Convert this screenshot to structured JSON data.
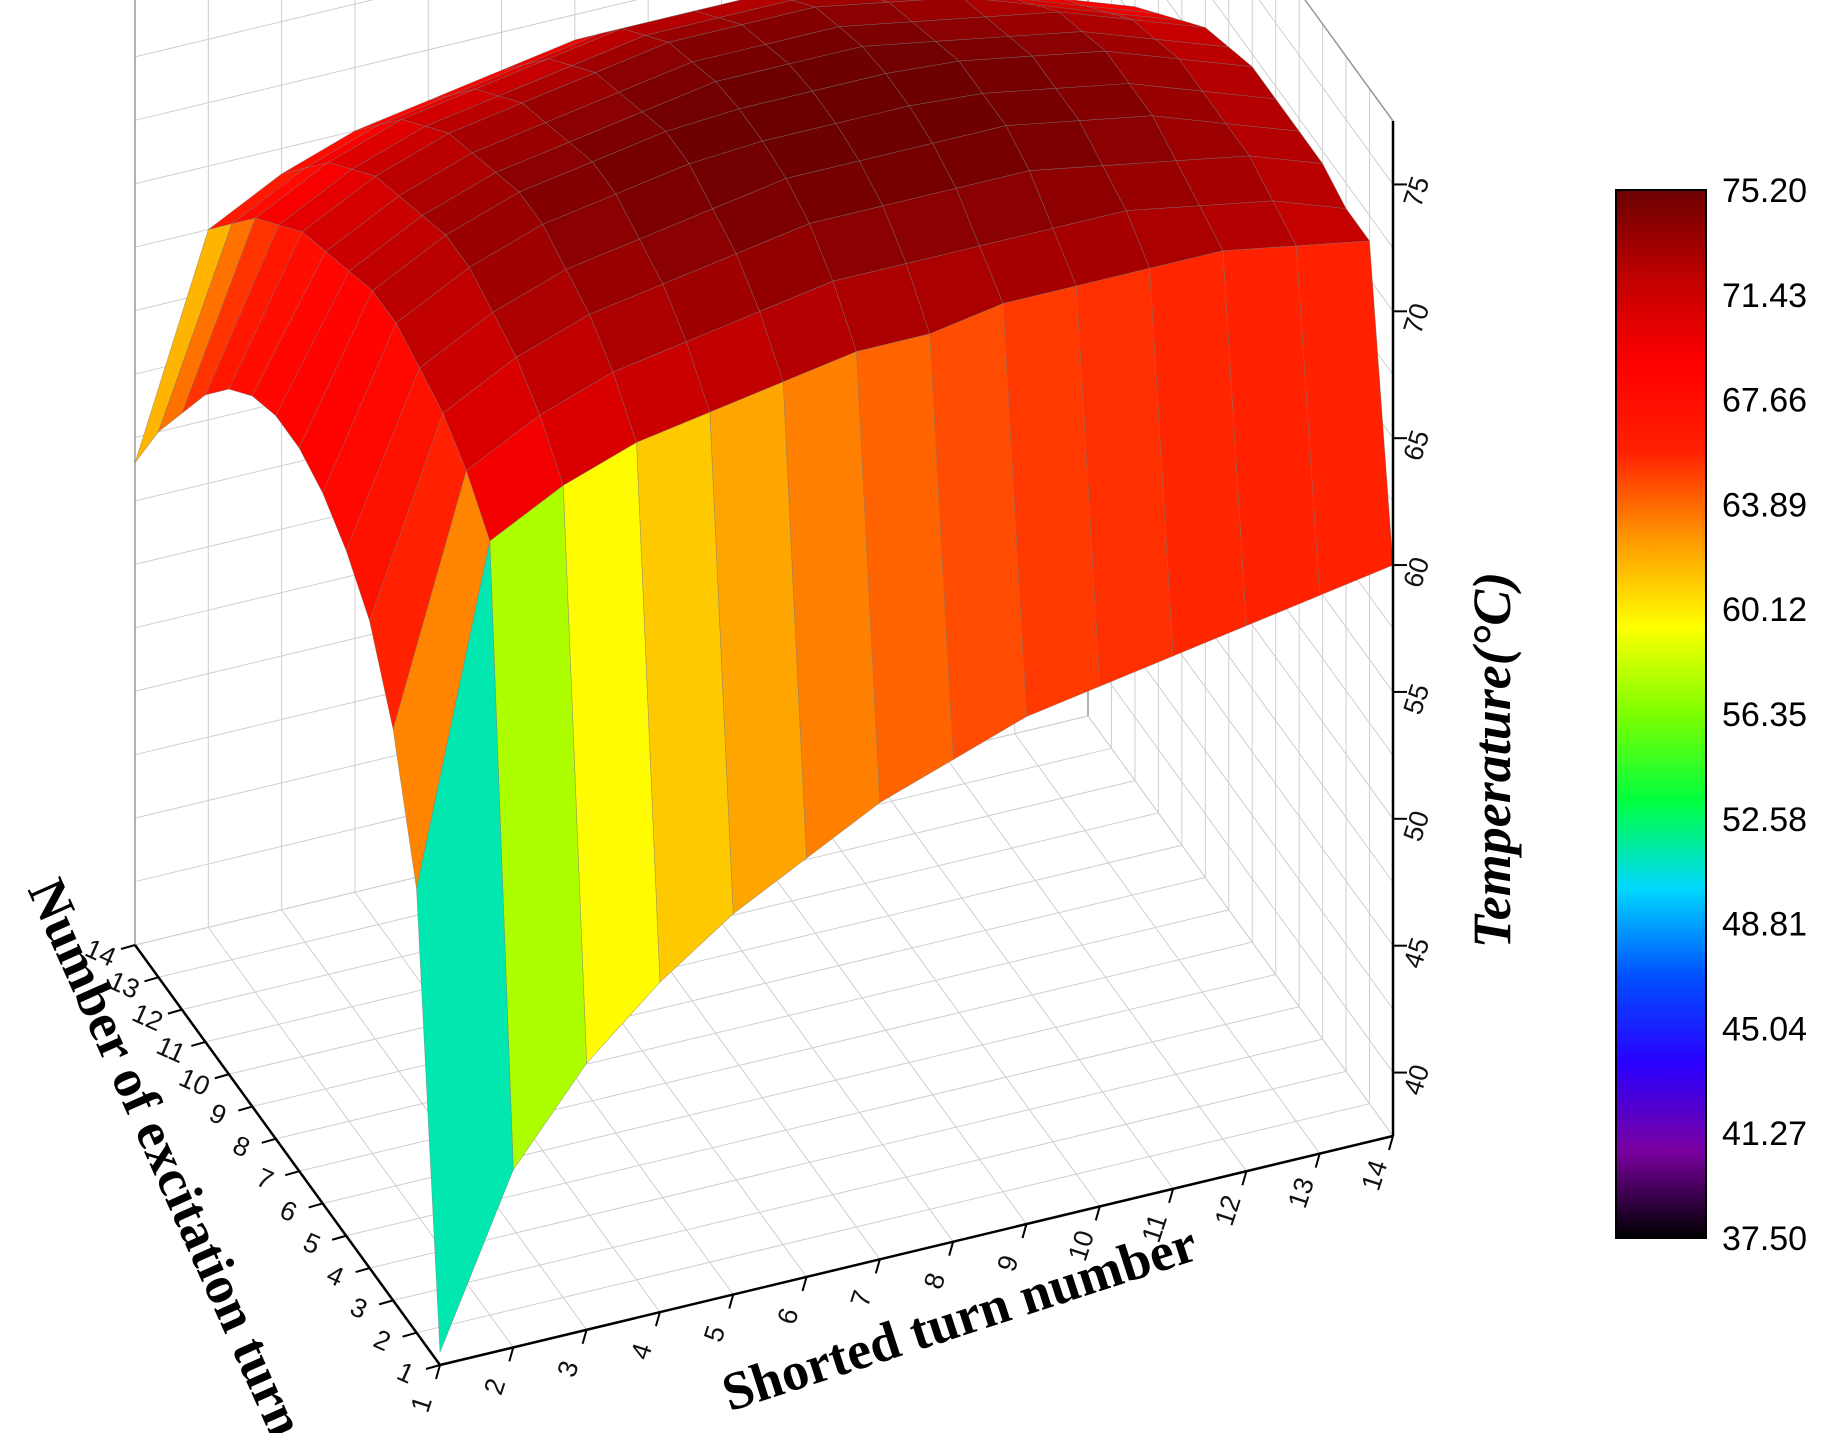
{
  "chart_data": {
    "type": "surface3d",
    "x_label": "Shorted turn number",
    "y_label": "Number of excitation turn",
    "z_label": "Temperature(°C)",
    "x_ticks": [
      "1",
      "2",
      "3",
      "4",
      "5",
      "6",
      "7",
      "8",
      "9",
      "10",
      "11",
      "12",
      "13",
      "14"
    ],
    "y_ticks": [
      "1",
      "2",
      "3",
      "4",
      "5",
      "6",
      "7",
      "8",
      "9",
      "10",
      "11",
      "12",
      "13",
      "14"
    ],
    "z_ticks": [
      "40",
      "45",
      "50",
      "55",
      "60",
      "65",
      "70",
      "75"
    ],
    "z_range": [
      37.5,
      77.5
    ],
    "colorbar_levels": [
      "75.20",
      "71.43",
      "67.66",
      "63.89",
      "60.12",
      "56.35",
      "52.58",
      "48.81",
      "45.04",
      "41.27",
      "37.50"
    ],
    "colorbar_range": [
      37.5,
      75.2
    ],
    "colormap": [
      "#000000",
      "#7a00a0",
      "#2a00ff",
      "#0050ff",
      "#00d8ff",
      "#00ff40",
      "#7dff00",
      "#ffff00",
      "#ff9800",
      "#ff2000",
      "#ff0000",
      "#c00000",
      "#6a0000"
    ],
    "surface_grid": {
      "x": [
        1,
        2,
        3,
        4,
        5,
        6,
        7,
        8,
        9,
        10,
        11,
        12,
        13,
        14
      ],
      "y": [
        1,
        2,
        3,
        4,
        5,
        6,
        7,
        8,
        9,
        10,
        11,
        12,
        13,
        14
      ],
      "rows_by_y": [
        [
          38.0,
          44.5,
          48.0,
          50.5,
          52.5,
          54.0,
          55.5,
          56.5,
          57.5,
          58.0,
          58.5,
          59.0,
          59.5,
          60.0
        ],
        [
          55.0,
          68.0,
          69.5,
          70.5,
          71.0,
          71.5,
          72.0,
          72.0,
          72.5,
          72.5,
          72.5,
          72.5,
          72.0,
          71.5
        ],
        [
          60.0,
          69.5,
          71.0,
          72.0,
          72.5,
          73.0,
          73.5,
          73.5,
          73.5,
          73.5,
          73.5,
          73.0,
          72.5,
          71.5
        ],
        [
          63.0,
          70.5,
          72.0,
          73.0,
          73.5,
          74.0,
          74.5,
          74.5,
          74.5,
          74.5,
          74.0,
          73.5,
          73.0,
          72.0
        ],
        [
          64.5,
          71.0,
          72.5,
          73.5,
          74.0,
          74.5,
          75.0,
          75.0,
          75.0,
          75.0,
          74.5,
          74.0,
          73.0,
          72.0
        ],
        [
          65.5,
          71.5,
          73.0,
          74.0,
          74.5,
          75.0,
          75.2,
          75.2,
          75.2,
          75.0,
          74.5,
          74.0,
          73.0,
          72.0
        ],
        [
          66.0,
          71.5,
          73.0,
          74.0,
          74.5,
          75.0,
          75.2,
          75.2,
          75.2,
          75.0,
          74.5,
          74.0,
          73.0,
          72.0
        ],
        [
          66.0,
          71.0,
          72.5,
          73.5,
          74.0,
          74.5,
          75.0,
          75.0,
          75.0,
          74.5,
          74.0,
          73.5,
          72.5,
          71.5
        ],
        [
          65.5,
          70.5,
          72.0,
          73.0,
          73.5,
          74.0,
          74.5,
          74.5,
          74.5,
          74.0,
          73.5,
          73.0,
          72.0,
          71.0
        ],
        [
          64.5,
          70.0,
          71.5,
          72.5,
          73.0,
          73.5,
          74.0,
          74.0,
          74.0,
          73.5,
          73.0,
          72.0,
          71.0,
          70.0
        ],
        [
          63.0,
          69.0,
          70.5,
          71.5,
          72.0,
          72.5,
          73.0,
          73.0,
          73.0,
          72.5,
          72.0,
          71.0,
          70.0,
          69.0
        ],
        [
          61.0,
          68.0,
          69.5,
          70.5,
          71.0,
          71.5,
          72.0,
          72.0,
          72.0,
          71.5,
          71.0,
          70.0,
          69.0,
          68.0
        ],
        [
          59.0,
          66.5,
          68.0,
          69.0,
          69.5,
          70.0,
          70.5,
          70.5,
          70.5,
          70.0,
          69.5,
          68.5,
          67.5,
          66.5
        ],
        [
          56.5,
          65.0,
          66.5,
          67.5,
          68.0,
          68.5,
          69.0,
          69.0,
          69.0,
          68.5,
          68.0,
          67.0,
          66.0,
          64.5
        ]
      ]
    }
  }
}
